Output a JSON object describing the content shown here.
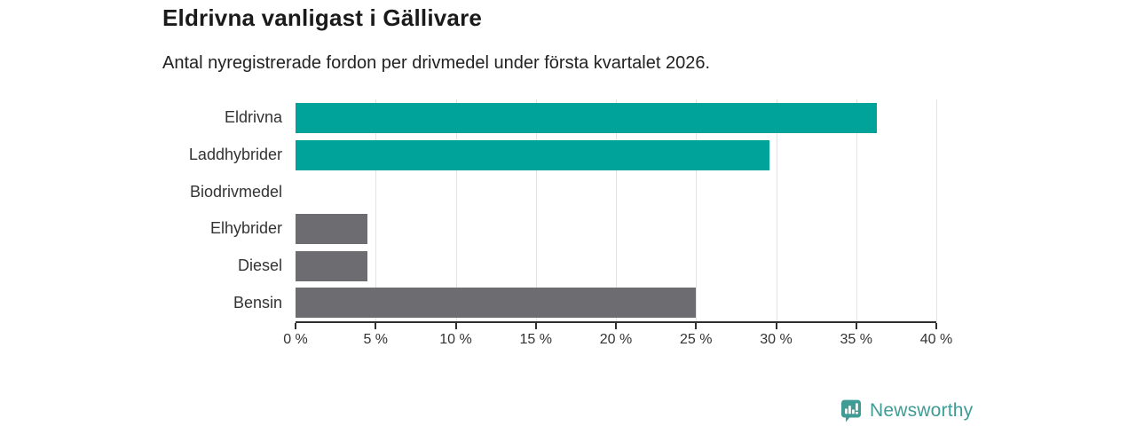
{
  "header": {
    "title": "Eldrivna vanligast i Gällivare",
    "subtitle": "Antal nyregistrerade fordon per drivmedel under första kvartalet 2026."
  },
  "chart_data": {
    "type": "bar",
    "orientation": "horizontal",
    "title": "Eldrivna vanligast i Gällivare",
    "subtitle": "Antal nyregistrerade fordon per drivmedel under första kvartalet 2026.",
    "categories": [
      "Eldrivna",
      "Laddhybrider",
      "Biodrivmedel",
      "Elhybrider",
      "Diesel",
      "Bensin"
    ],
    "values": [
      36.3,
      29.6,
      0,
      4.5,
      4.5,
      25
    ],
    "bar_colors": [
      "teal",
      "teal",
      "gray",
      "gray",
      "gray",
      "gray"
    ],
    "xlabel": "",
    "ylabel": "",
    "xlim": [
      0,
      40
    ],
    "grid": true,
    "legend": false,
    "gridlines": [
      5,
      10,
      15,
      20,
      25,
      30,
      35,
      40
    ],
    "xticks": [
      {
        "value": 0,
        "label": "0 %"
      },
      {
        "value": 5,
        "label": "5 %"
      },
      {
        "value": 10,
        "label": "10 %"
      },
      {
        "value": 15,
        "label": "15 %"
      },
      {
        "value": 20,
        "label": "20 %"
      },
      {
        "value": 25,
        "label": "25 %"
      },
      {
        "value": 30,
        "label": "30 %"
      },
      {
        "value": 35,
        "label": "35 %"
      },
      {
        "value": 40,
        "label": "40 %"
      }
    ]
  },
  "colors": {
    "teal": "#00a39a",
    "gray": "#6c6c71",
    "grid": "#e3e3e3",
    "axis": "#2f2f2f",
    "logo": "#3f9c95"
  },
  "footer": {
    "brand": "Newsworthy",
    "logo_icon": "bar-chart-speech-bubble-icon"
  }
}
